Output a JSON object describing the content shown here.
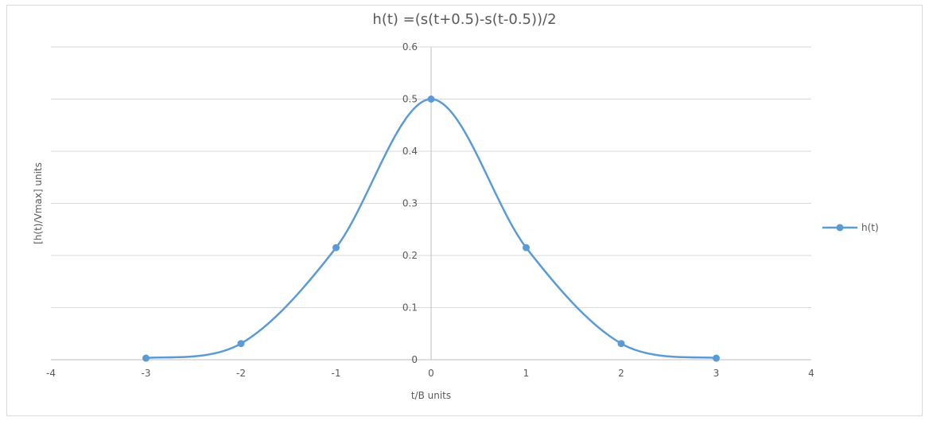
{
  "chart_data": {
    "type": "line",
    "title": "h(t) =(s(t+0.5)-s(t-0.5))/2",
    "xlabel": "t/B units",
    "ylabel": "[h(t)/Vmax] units",
    "xlim": [
      -4,
      4
    ],
    "ylim": [
      0,
      0.6
    ],
    "xticks": [
      -4,
      -3,
      -2,
      -1,
      0,
      1,
      2,
      3,
      4
    ],
    "yticks": [
      0,
      0.1,
      0.2,
      0.3,
      0.4,
      0.5,
      0.6
    ],
    "grid": true,
    "legend_position": "right",
    "smooth": true,
    "series": [
      {
        "name": "h(t)",
        "color": "#5b9bd5",
        "x": [
          -3,
          -2,
          -1,
          0,
          1,
          2,
          3
        ],
        "y": [
          0.003,
          0.031,
          0.215,
          0.5,
          0.215,
          0.031,
          0.003
        ]
      }
    ]
  }
}
